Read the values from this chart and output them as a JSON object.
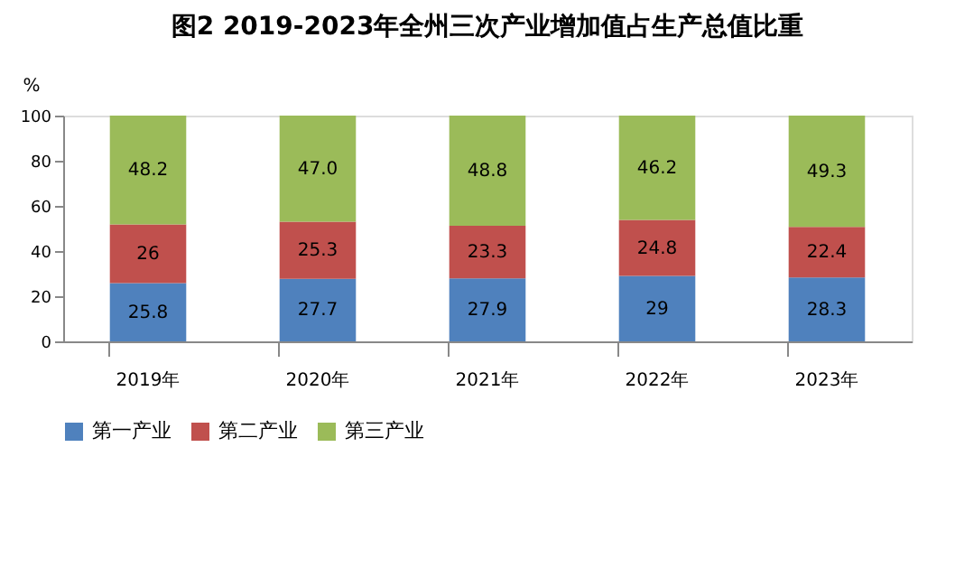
{
  "chart_data": {
    "type": "bar",
    "stacked": true,
    "title": "图2  2019-2023年全州三次产业增加值占生产总值比重",
    "ylabel": "%",
    "categories": [
      "2019年",
      "2020年",
      "2021年",
      "2022年",
      "2023年"
    ],
    "series": [
      {
        "name": "第一产业",
        "color": "#4f81bd",
        "values": [
          25.8,
          27.7,
          27.9,
          29,
          28.3
        ],
        "value_labels": [
          "25.8",
          "27.7",
          "27.9",
          "29",
          "28.3"
        ]
      },
      {
        "name": "第二产业",
        "color": "#c0504d",
        "values": [
          26,
          25.3,
          23.3,
          24.8,
          22.4
        ],
        "value_labels": [
          "26",
          "25.3",
          "23.3",
          "24.8",
          "22.4"
        ]
      },
      {
        "name": "第三产业",
        "color": "#9bbb59",
        "values": [
          48.2,
          47.0,
          48.8,
          46.2,
          49.3
        ],
        "value_labels": [
          "48.2",
          "47.0",
          "48.8",
          "46.2",
          "49.3"
        ]
      }
    ],
    "ylim": [
      0,
      100
    ],
    "yticks": [
      0,
      20,
      40,
      60,
      80,
      100
    ],
    "grid": false,
    "legend": "bottom"
  }
}
